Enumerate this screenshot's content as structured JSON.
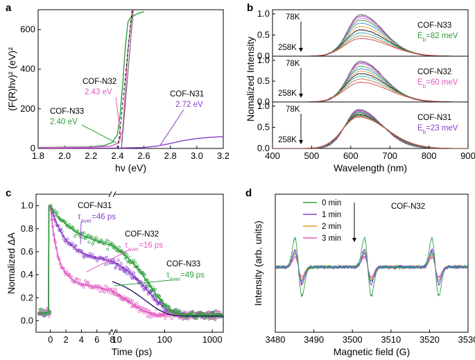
{
  "panels": {
    "a": {
      "label": "a"
    },
    "b": {
      "label": "b"
    },
    "c": {
      "label": "c"
    },
    "d": {
      "label": "d"
    }
  },
  "colors": {
    "green": "#2e9e3a",
    "magenta": "#e05ac0",
    "purple": "#8a3ec8",
    "blue": "#2f7fd0",
    "orange": "#e09a2c",
    "gray": "#555555",
    "black": "#000000"
  },
  "chart_data": [
    {
      "id": "a",
      "type": "line",
      "xlabel": "hν (eV)",
      "ylabel": "(F(R)hν)² (eV)²",
      "xlim": [
        1.8,
        3.2
      ],
      "ylim": [
        0,
        700
      ],
      "xticks": [
        "1.8",
        "2.0",
        "2.2",
        "2.4",
        "2.6",
        "2.8",
        "3.0",
        "3.2"
      ],
      "yticks": [
        "0",
        "200",
        "400",
        "600"
      ],
      "series": [
        {
          "name": "COF-N33",
          "color": "#2e9e3a",
          "x": [
            1.8,
            2.2,
            2.3,
            2.36,
            2.4,
            2.42,
            2.44,
            2.46,
            2.48,
            2.5,
            2.55,
            2.6
          ],
          "y": [
            5,
            8,
            15,
            30,
            70,
            170,
            330,
            520,
            640,
            660,
            680,
            690
          ]
        },
        {
          "name": "COF-N32",
          "color": "#e05ac0",
          "x": [
            1.8,
            2.2,
            2.35,
            2.4,
            2.44,
            2.46,
            2.48,
            2.5,
            2.51,
            2.52
          ],
          "y": [
            4,
            6,
            12,
            25,
            90,
            300,
            500,
            620,
            680,
            700
          ]
        },
        {
          "name": "COF-N31",
          "color": "#8a3ec8",
          "x": [
            1.8,
            2.4,
            2.6,
            2.7,
            2.8,
            2.9,
            3.0,
            3.1,
            3.2
          ],
          "y": [
            0,
            2,
            5,
            12,
            25,
            40,
            50,
            56,
            60
          ]
        }
      ],
      "annotations": [
        {
          "name": "COF-N32",
          "value": "2.43 eV",
          "color": "#e05ac0"
        },
        {
          "name": "COF-N33",
          "value": "2.40 eV",
          "color": "#2e9e3a"
        },
        {
          "name": "COF-N31",
          "value": "2.72 eV",
          "color": "#8a3ec8"
        }
      ]
    },
    {
      "id": "b",
      "type": "line",
      "xlabel": "Wavelength (nm)",
      "ylabel": "Nomalized Intensity",
      "xlim": [
        400,
        900
      ],
      "xticks": [
        "400",
        "500",
        "600",
        "700",
        "800",
        "900"
      ],
      "yticks": [
        "0.0",
        "0.5",
        "1.0"
      ],
      "temperature_top": "78K",
      "temperature_bottom": "258K",
      "subpanels": [
        {
          "name": "COF-N33",
          "eb_label": "E",
          "eb_sub": "b",
          "eb_value": "=82 meV",
          "eb_color": "#2e9e3a",
          "peak": 625,
          "amplitudes": [
            0.98,
            0.95,
            0.9,
            0.85,
            0.78,
            0.7,
            0.62,
            0.55,
            0.48,
            0.42
          ]
        },
        {
          "name": "COF-N32",
          "eb_label": "E",
          "eb_sub": "b",
          "eb_value": "=60 meV",
          "eb_color": "#e05ac0",
          "peak": 625,
          "amplitudes": [
            0.98,
            0.95,
            0.92,
            0.86,
            0.8,
            0.74,
            0.68,
            0.62,
            0.55,
            0.47
          ]
        },
        {
          "name": "COF-N31",
          "eb_label": "E",
          "eb_sub": "b",
          "eb_value": "=23 meV",
          "eb_color": "#8a3ec8",
          "peak": 620,
          "amplitudes": [
            0.92,
            0.9,
            0.88,
            0.86,
            0.84,
            0.82,
            0.8,
            0.78,
            0.76,
            0.74
          ]
        }
      ],
      "series_colors": [
        "#555555",
        "#8a3ec8",
        "#e05ac0",
        "#2e9e3a",
        "#2f7fd0",
        "#e09a2c",
        "#000000",
        "#30b0b0",
        "#b07a30",
        "#d04040"
      ]
    },
    {
      "id": "c",
      "type": "scatter",
      "xlabel": "Time (ps)",
      "ylabel": "Nomalized ΔA",
      "ylim": [
        -0.1,
        1.1
      ],
      "xticks_linear": [
        "0",
        "2",
        "4",
        "6",
        "8"
      ],
      "xticks_log": [
        "10",
        "100",
        "1000"
      ],
      "yticks": [
        "0.0",
        "0.2",
        "0.4",
        "0.6",
        "0.8",
        "1.0"
      ],
      "series": [
        {
          "name": "COF-N31",
          "color": "#8a3ec8",
          "tau_label": "τ",
          "tau_sub": "aver",
          "tau_value": "=46 ps",
          "tau": 46
        },
        {
          "name": "COF-N32",
          "color": "#e05ac0",
          "tau_label": "τ",
          "tau_sub": "aver",
          "tau_value": "=16 ps",
          "tau": 16
        },
        {
          "name": "COF-N33",
          "color": "#2e9e3a",
          "tau_label": "τ",
          "tau_sub": "aver",
          "tau_value": "=49 ps",
          "tau": 49
        }
      ]
    },
    {
      "id": "d",
      "type": "line",
      "xlabel": "Magnetic field (G)",
      "ylabel": "Intensity (arb. units)",
      "xlim": [
        3480,
        3530
      ],
      "xticks": [
        "3480",
        "3490",
        "3500",
        "3510",
        "3520",
        "3530"
      ],
      "sample": "COF-N32",
      "line_centers": [
        3486,
        3504,
        3521.5
      ],
      "legend_position": "top-left",
      "series": [
        {
          "name": "0 min",
          "color": "#2e9e3a",
          "amp": 1.0
        },
        {
          "name": "1 min",
          "color": "#8a3ec8",
          "amp": 0.6
        },
        {
          "name": "2 min",
          "color": "#e09a2c",
          "amp": 0.45
        },
        {
          "name": "3 min",
          "color": "#e05ac0",
          "amp": 0.35
        }
      ]
    }
  ]
}
